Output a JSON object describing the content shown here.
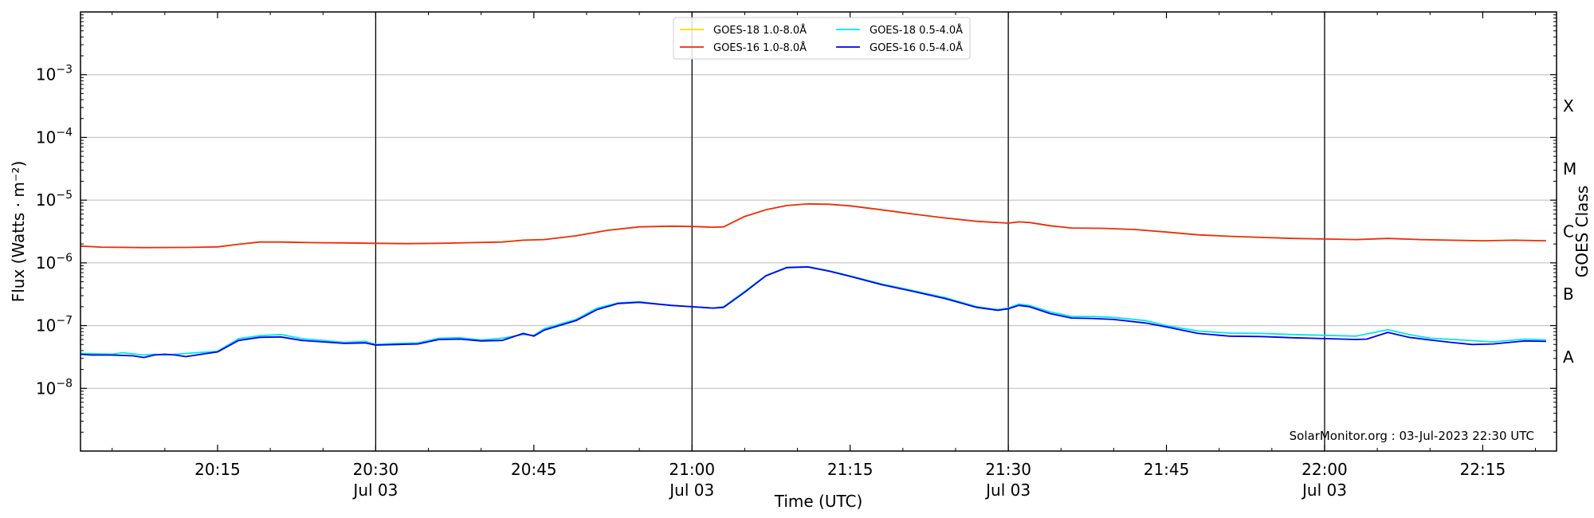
{
  "chart_data": {
    "type": "line",
    "xlabel": "Time (UTC)",
    "ylabel": "Flux (Watts · m⁻²)",
    "y2label": "GOES Class",
    "y_scale": "log",
    "ylim": [
      1e-09,
      0.01
    ],
    "xlim": [
      "20:02",
      "22:22"
    ],
    "x_ticks": [
      {
        "time": "20:15",
        "label": "20:15",
        "date": ""
      },
      {
        "time": "20:30",
        "label": "20:30",
        "date": "Jul 03"
      },
      {
        "time": "20:45",
        "label": "20:45",
        "date": ""
      },
      {
        "time": "21:00",
        "label": "21:00",
        "date": "Jul 03"
      },
      {
        "time": "21:15",
        "label": "21:15",
        "date": ""
      },
      {
        "time": "21:30",
        "label": "21:30",
        "date": "Jul 03"
      },
      {
        "time": "21:45",
        "label": "21:45",
        "date": ""
      },
      {
        "time": "22:00",
        "label": "22:00",
        "date": "Jul 03"
      },
      {
        "time": "22:15",
        "label": "22:15",
        "date": ""
      }
    ],
    "vlines": [
      "20:30",
      "21:00",
      "21:30",
      "22:00"
    ],
    "y_ticks": [
      {
        "value": 1e-08,
        "mantissa": "10",
        "exponent": "−8"
      },
      {
        "value": 1e-07,
        "mantissa": "10",
        "exponent": "−7"
      },
      {
        "value": 1e-06,
        "mantissa": "10",
        "exponent": "−6"
      },
      {
        "value": 1e-05,
        "mantissa": "10",
        "exponent": "−5"
      },
      {
        "value": 0.0001,
        "mantissa": "10",
        "exponent": "−4"
      },
      {
        "value": 0.001,
        "mantissa": "10",
        "exponent": "−3"
      }
    ],
    "goes_classes": [
      {
        "label": "A",
        "value": 3.16e-08
      },
      {
        "label": "B",
        "value": 3.16e-07
      },
      {
        "label": "C",
        "value": 3.16e-06
      },
      {
        "label": "M",
        "value": 3.16e-05
      },
      {
        "label": "X",
        "value": 0.000316
      }
    ],
    "grid": true,
    "legend_position": "top-center",
    "credit": "SolarMonitor.org : 03-Jul-2023 22:30 UTC",
    "series": [
      {
        "name": "GOES-18 1.0-8.0Å",
        "color": "#ffd700",
        "points": []
      },
      {
        "name": "GOES-18 0.5-4.0Å",
        "color": "#00e5ee",
        "points": [
          [
            "20:02",
            3.6e-08
          ],
          [
            "20:05",
            3.5e-08
          ],
          [
            "20:06",
            3.7e-08
          ],
          [
            "20:08",
            3.4e-08
          ],
          [
            "20:09",
            3.5e-08
          ],
          [
            "20:10",
            3.4e-08
          ],
          [
            "20:12",
            3.6e-08
          ],
          [
            "20:15",
            3.9e-08
          ],
          [
            "20:17",
            6.2e-08
          ],
          [
            "20:19",
            6.9e-08
          ],
          [
            "20:21",
            7.2e-08
          ],
          [
            "20:23",
            6.2e-08
          ],
          [
            "20:25",
            5.8e-08
          ],
          [
            "20:27",
            5.4e-08
          ],
          [
            "20:29",
            5.6e-08
          ],
          [
            "20:30",
            5e-08
          ],
          [
            "20:32",
            5.2e-08
          ],
          [
            "20:34",
            5.3e-08
          ],
          [
            "20:36",
            6.3e-08
          ],
          [
            "20:38",
            6.4e-08
          ],
          [
            "20:40",
            5.9e-08
          ],
          [
            "20:42",
            6.3e-08
          ],
          [
            "20:44",
            7.2e-08
          ],
          [
            "20:45",
            7e-08
          ],
          [
            "20:46",
            9e-08
          ],
          [
            "20:49",
            1.25e-07
          ],
          [
            "20:51",
            1.9e-07
          ],
          [
            "20:53",
            2.3e-07
          ],
          [
            "20:55",
            2.4e-07
          ],
          [
            "20:58",
            2.1e-07
          ],
          [
            "21:00",
            2e-07
          ],
          [
            "21:02",
            1.9e-07
          ],
          [
            "21:03",
            2e-07
          ],
          [
            "21:05",
            3.5e-07
          ],
          [
            "21:07",
            6.3e-07
          ],
          [
            "21:09",
            8.5e-07
          ],
          [
            "21:11",
            8.7e-07
          ],
          [
            "21:13",
            7.5e-07
          ],
          [
            "21:15",
            6.2e-07
          ],
          [
            "21:18",
            4.6e-07
          ],
          [
            "21:21",
            3.6e-07
          ],
          [
            "21:24",
            2.8e-07
          ],
          [
            "21:27",
            2e-07
          ],
          [
            "21:29",
            1.8e-07
          ],
          [
            "21:30",
            1.9e-07
          ],
          [
            "21:31",
            2.2e-07
          ],
          [
            "21:32",
            2.1e-07
          ],
          [
            "21:34",
            1.65e-07
          ],
          [
            "21:36",
            1.4e-07
          ],
          [
            "21:38",
            1.4e-07
          ],
          [
            "21:40",
            1.35e-07
          ],
          [
            "21:43",
            1.2e-07
          ],
          [
            "21:45",
            1e-07
          ],
          [
            "21:48",
            8.2e-08
          ],
          [
            "21:51",
            7.6e-08
          ],
          [
            "21:54",
            7.5e-08
          ],
          [
            "21:57",
            7.2e-08
          ],
          [
            "22:00",
            7e-08
          ],
          [
            "22:03",
            6.8e-08
          ],
          [
            "22:06",
            8.6e-08
          ],
          [
            "22:08",
            7.2e-08
          ],
          [
            "22:10",
            6.3e-08
          ],
          [
            "22:13",
            5.9e-08
          ],
          [
            "22:16",
            5.5e-08
          ],
          [
            "22:19",
            6.1e-08
          ],
          [
            "22:21",
            5.9e-08
          ]
        ]
      },
      {
        "name": "GOES-16 1.0-8.0Å",
        "color": "#ee2c00",
        "points": [
          [
            "20:02",
            1.85e-06
          ],
          [
            "20:04",
            1.78e-06
          ],
          [
            "20:08",
            1.75e-06
          ],
          [
            "20:12",
            1.76e-06
          ],
          [
            "20:15",
            1.8e-06
          ],
          [
            "20:17",
            1.98e-06
          ],
          [
            "20:19",
            2.15e-06
          ],
          [
            "20:21",
            2.15e-06
          ],
          [
            "20:24",
            2.1e-06
          ],
          [
            "20:27",
            2.08e-06
          ],
          [
            "20:30",
            2.05e-06
          ],
          [
            "20:33",
            2.03e-06
          ],
          [
            "20:36",
            2.05e-06
          ],
          [
            "20:39",
            2.1e-06
          ],
          [
            "20:42",
            2.15e-06
          ],
          [
            "20:44",
            2.3e-06
          ],
          [
            "20:46",
            2.35e-06
          ],
          [
            "20:49",
            2.7e-06
          ],
          [
            "20:52",
            3.3e-06
          ],
          [
            "20:55",
            3.75e-06
          ],
          [
            "20:58",
            3.85e-06
          ],
          [
            "21:00",
            3.8e-06
          ],
          [
            "21:02",
            3.7e-06
          ],
          [
            "21:03",
            3.75e-06
          ],
          [
            "21:05",
            5.5e-06
          ],
          [
            "21:07",
            7e-06
          ],
          [
            "21:09",
            8.2e-06
          ],
          [
            "21:11",
            8.7e-06
          ],
          [
            "21:13",
            8.6e-06
          ],
          [
            "21:15",
            8.1e-06
          ],
          [
            "21:18",
            7e-06
          ],
          [
            "21:21",
            6e-06
          ],
          [
            "21:24",
            5.2e-06
          ],
          [
            "21:27",
            4.6e-06
          ],
          [
            "21:30",
            4.3e-06
          ],
          [
            "21:31",
            4.5e-06
          ],
          [
            "21:32",
            4.4e-06
          ],
          [
            "21:34",
            3.9e-06
          ],
          [
            "21:36",
            3.6e-06
          ],
          [
            "21:39",
            3.55e-06
          ],
          [
            "21:42",
            3.4e-06
          ],
          [
            "21:45",
            3.1e-06
          ],
          [
            "21:48",
            2.8e-06
          ],
          [
            "21:51",
            2.65e-06
          ],
          [
            "21:54",
            2.55e-06
          ],
          [
            "21:57",
            2.45e-06
          ],
          [
            "22:00",
            2.4e-06
          ],
          [
            "22:03",
            2.35e-06
          ],
          [
            "22:06",
            2.45e-06
          ],
          [
            "22:09",
            2.35e-06
          ],
          [
            "22:12",
            2.3e-06
          ],
          [
            "22:15",
            2.25e-06
          ],
          [
            "22:18",
            2.3e-06
          ],
          [
            "22:21",
            2.25e-06
          ]
        ]
      },
      {
        "name": "GOES-16 0.5-4.0Å",
        "color": "#0000ee",
        "points": [
          [
            "20:02",
            3.5e-08
          ],
          [
            "20:03",
            3.4e-08
          ],
          [
            "20:05",
            3.4e-08
          ],
          [
            "20:07",
            3.3e-08
          ],
          [
            "20:08",
            3.1e-08
          ],
          [
            "20:09",
            3.4e-08
          ],
          [
            "20:10",
            3.5e-08
          ],
          [
            "20:11",
            3.4e-08
          ],
          [
            "20:12",
            3.2e-08
          ],
          [
            "20:14",
            3.6e-08
          ],
          [
            "20:15",
            3.8e-08
          ],
          [
            "20:17",
            5.8e-08
          ],
          [
            "20:19",
            6.5e-08
          ],
          [
            "20:21",
            6.6e-08
          ],
          [
            "20:23",
            5.8e-08
          ],
          [
            "20:25",
            5.5e-08
          ],
          [
            "20:27",
            5.2e-08
          ],
          [
            "20:29",
            5.3e-08
          ],
          [
            "20:30",
            4.9e-08
          ],
          [
            "20:32",
            5e-08
          ],
          [
            "20:34",
            5.1e-08
          ],
          [
            "20:36",
            6e-08
          ],
          [
            "20:38",
            6.1e-08
          ],
          [
            "20:40",
            5.7e-08
          ],
          [
            "20:42",
            5.8e-08
          ],
          [
            "20:44",
            7.5e-08
          ],
          [
            "20:45",
            6.8e-08
          ],
          [
            "20:46",
            8.5e-08
          ],
          [
            "20:49",
            1.2e-07
          ],
          [
            "20:51",
            1.8e-07
          ],
          [
            "20:53",
            2.25e-07
          ],
          [
            "20:55",
            2.35e-07
          ],
          [
            "20:58",
            2.1e-07
          ],
          [
            "21:00",
            2e-07
          ],
          [
            "21:02",
            1.9e-07
          ],
          [
            "21:03",
            1.95e-07
          ],
          [
            "21:05",
            3.4e-07
          ],
          [
            "21:07",
            6.2e-07
          ],
          [
            "21:09",
            8.4e-07
          ],
          [
            "21:11",
            8.6e-07
          ],
          [
            "21:13",
            7.4e-07
          ],
          [
            "21:15",
            6.1e-07
          ],
          [
            "21:18",
            4.5e-07
          ],
          [
            "21:21",
            3.5e-07
          ],
          [
            "21:24",
            2.7e-07
          ],
          [
            "21:27",
            1.95e-07
          ],
          [
            "21:29",
            1.75e-07
          ],
          [
            "21:30",
            1.85e-07
          ],
          [
            "21:31",
            2.1e-07
          ],
          [
            "21:32",
            2e-07
          ],
          [
            "21:34",
            1.55e-07
          ],
          [
            "21:36",
            1.32e-07
          ],
          [
            "21:38",
            1.3e-07
          ],
          [
            "21:40",
            1.25e-07
          ],
          [
            "21:43",
            1.1e-07
          ],
          [
            "21:45",
            9.5e-08
          ],
          [
            "21:48",
            7.5e-08
          ],
          [
            "21:51",
            6.8e-08
          ],
          [
            "21:54",
            6.7e-08
          ],
          [
            "21:57",
            6.4e-08
          ],
          [
            "22:00",
            6.2e-08
          ],
          [
            "22:03",
            6e-08
          ],
          [
            "22:04",
            6.1e-08
          ],
          [
            "22:06",
            7.8e-08
          ],
          [
            "22:08",
            6.5e-08
          ],
          [
            "22:10",
            5.9e-08
          ],
          [
            "22:12",
            5.4e-08
          ],
          [
            "22:14",
            5e-08
          ],
          [
            "22:16",
            5.1e-08
          ],
          [
            "22:19",
            5.7e-08
          ],
          [
            "22:21",
            5.6e-08
          ]
        ]
      }
    ]
  }
}
